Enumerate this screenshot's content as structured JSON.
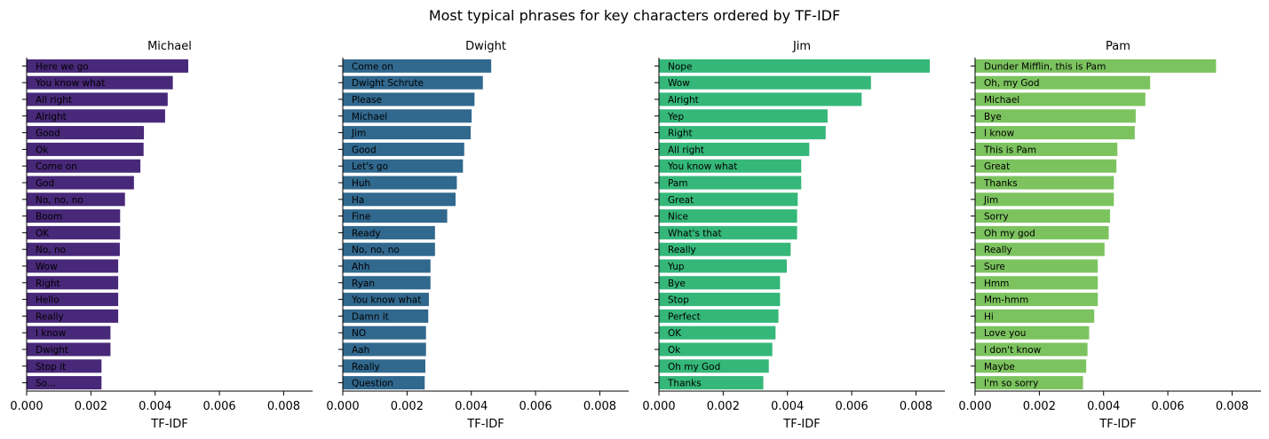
{
  "figure": {
    "title": "Most typical phrases for key characters ordered by TF-IDF"
  },
  "chart_data": [
    {
      "type": "bar",
      "orientation": "horizontal",
      "title": "Michael",
      "xlabel": "TF-IDF",
      "ylabel": "",
      "xlim": [
        0,
        0.0089
      ],
      "xticks": [
        "0.000",
        "0.002",
        "0.004",
        "0.006",
        "0.008"
      ],
      "color": "#482878",
      "categories": [
        "Here we go",
        "You know what",
        "All right",
        "Alright",
        "Good",
        "Ok",
        "Come on",
        "God",
        "No, no, no",
        "Boom",
        "OK",
        "No, no",
        "Wow",
        "Right",
        "Hello",
        "Really",
        "I know",
        "Dwight",
        "Stop it",
        "So..."
      ],
      "values": [
        0.00503,
        0.00455,
        0.00439,
        0.00431,
        0.00365,
        0.00364,
        0.00354,
        0.00334,
        0.00306,
        0.00291,
        0.00291,
        0.0029,
        0.00285,
        0.00285,
        0.00285,
        0.00285,
        0.00261,
        0.00261,
        0.00233,
        0.00233
      ]
    },
    {
      "type": "bar",
      "orientation": "horizontal",
      "title": "Dwight",
      "xlabel": "TF-IDF",
      "ylabel": "",
      "xlim": [
        0,
        0.0089
      ],
      "xticks": [
        "0.000",
        "0.002",
        "0.004",
        "0.006",
        "0.008"
      ],
      "color": "#31688e",
      "categories": [
        "Come on",
        "Dwight Schrute",
        "Please",
        "Michael",
        "Jim",
        "Good",
        "Let's go",
        "Huh",
        "Ha",
        "Fine",
        "Ready",
        "No, no, no",
        "Ahh",
        "Ryan",
        "You know what",
        "Damn it",
        "NO",
        "Aah",
        "Really",
        "Question"
      ],
      "values": [
        0.00462,
        0.00436,
        0.0041,
        0.00401,
        0.00398,
        0.00378,
        0.00374,
        0.00355,
        0.00351,
        0.00325,
        0.00287,
        0.00287,
        0.00273,
        0.00273,
        0.00268,
        0.00266,
        0.00259,
        0.00259,
        0.00257,
        0.00255
      ]
    },
    {
      "type": "bar",
      "orientation": "horizontal",
      "title": "Jim",
      "xlabel": "TF-IDF",
      "ylabel": "",
      "xlim": [
        0,
        0.0089
      ],
      "xticks": [
        "0.000",
        "0.002",
        "0.004",
        "0.006",
        "0.008"
      ],
      "color": "#35b779",
      "categories": [
        "Nope",
        "Wow",
        "Alright",
        "Yep",
        "Right",
        "All right",
        "You know what",
        "Pam",
        "Great",
        "Nice",
        "What's that",
        "Really",
        "Yup",
        "Bye",
        "Stop",
        "Perfect",
        "OK",
        "Ok",
        "Oh my God",
        "Thanks"
      ],
      "values": [
        0.00843,
        0.0066,
        0.00631,
        0.00525,
        0.00519,
        0.00468,
        0.00443,
        0.00443,
        0.00432,
        0.0043,
        0.0043,
        0.0041,
        0.00398,
        0.00377,
        0.00377,
        0.00372,
        0.00363,
        0.00353,
        0.00342,
        0.00325
      ]
    },
    {
      "type": "bar",
      "orientation": "horizontal",
      "title": "Pam",
      "xlabel": "TF-IDF",
      "ylabel": "",
      "xlim": [
        0,
        0.0089
      ],
      "xticks": [
        "0.000",
        "0.002",
        "0.004",
        "0.006",
        "0.008"
      ],
      "color": "#7cc35f",
      "categories": [
        "Dunder Mifflin, this is Pam",
        "Oh, my God",
        "Michael",
        "Bye",
        "I know",
        "This is Pam",
        "Great",
        "Thanks",
        "Jim",
        "Sorry",
        "Oh my god",
        "Really",
        "Sure",
        "Hmm",
        "Mm-hmm",
        "Hi",
        "Love you",
        "I don't know",
        "Maybe",
        "I'm so sorry"
      ],
      "values": [
        0.0075,
        0.00545,
        0.0053,
        0.005,
        0.00497,
        0.00443,
        0.0044,
        0.00432,
        0.00432,
        0.0042,
        0.00416,
        0.00403,
        0.00382,
        0.00382,
        0.00382,
        0.00371,
        0.00355,
        0.0035,
        0.00346,
        0.00336
      ]
    }
  ]
}
